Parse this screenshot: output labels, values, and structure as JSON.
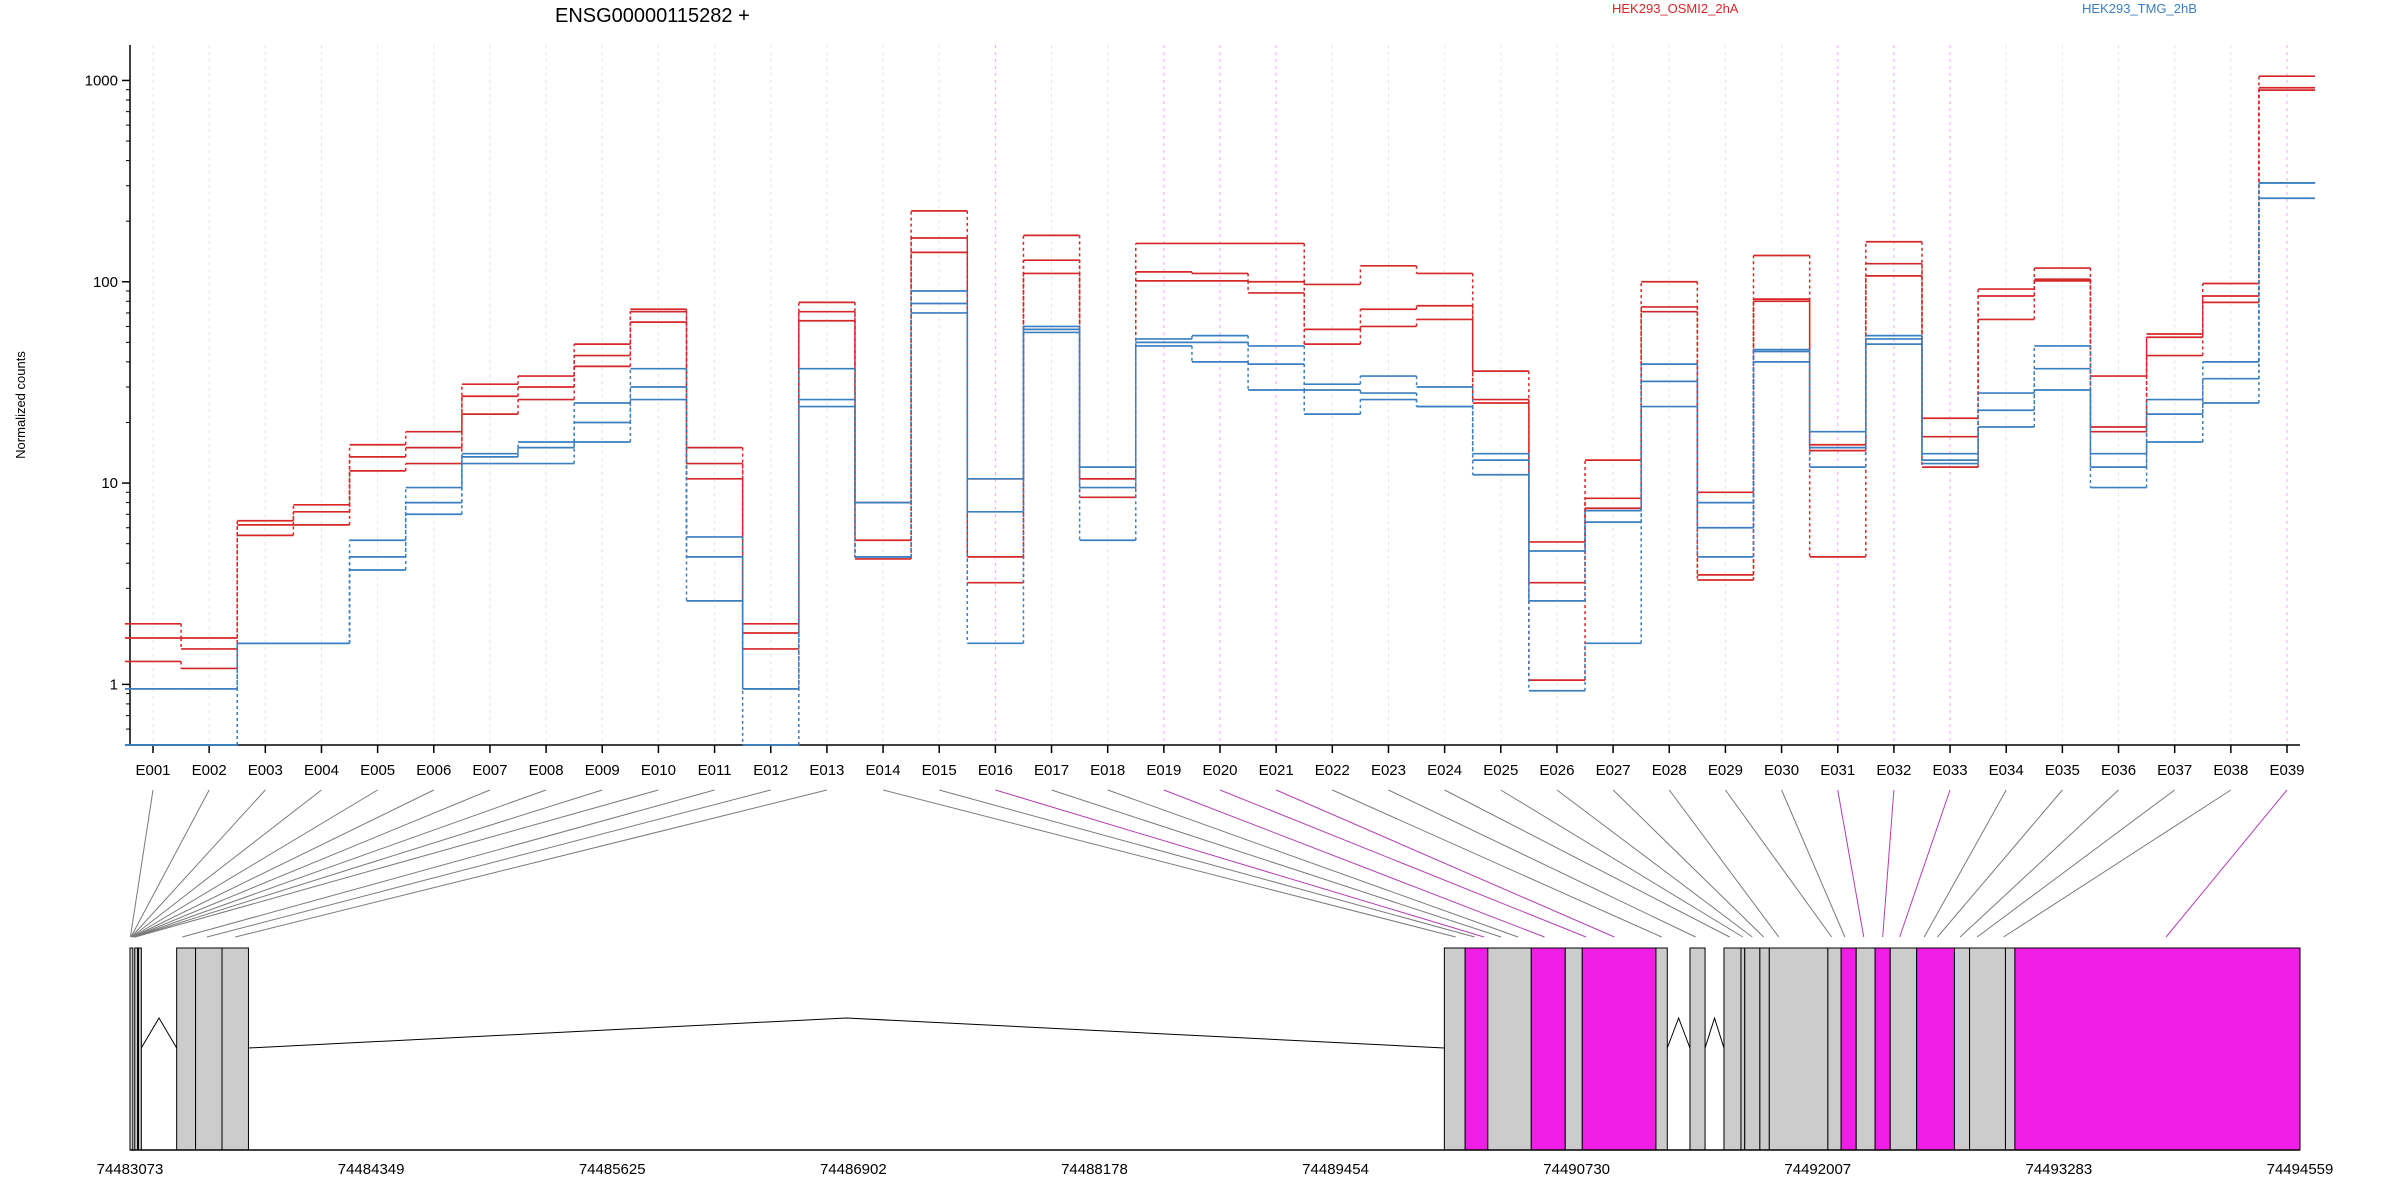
{
  "chart_data": {
    "type": "line",
    "title": "ENSG00000115282 +",
    "ylabel": "Normalized counts",
    "yscale": "log",
    "ylim": [
      0.5,
      1500
    ],
    "yticks": [
      "1",
      "10",
      "100",
      "1000"
    ],
    "legend": [
      {
        "name": "HEK293_OSMI2_2hA",
        "color": "#d62728"
      },
      {
        "name": "HEK293_TMG_2hB",
        "color": "#3a7fc0"
      }
    ],
    "categories": [
      "E001",
      "E002",
      "E003",
      "E004",
      "E005",
      "E006",
      "E007",
      "E008",
      "E009",
      "E010",
      "E011",
      "E012",
      "E013",
      "E014",
      "E015",
      "E016",
      "E017",
      "E018",
      "E019",
      "E020",
      "E021",
      "E022",
      "E023",
      "E024",
      "E025",
      "E026",
      "E027",
      "E028",
      "E029",
      "E030",
      "E031",
      "E032",
      "E033",
      "E034",
      "E035",
      "E036",
      "E037",
      "E038",
      "E039"
    ],
    "highlighted_exons": [
      "E016",
      "E019",
      "E020",
      "E021",
      "E031",
      "E032",
      "E033",
      "E039"
    ],
    "series": [
      {
        "name": "HEK293_OSMI2_2hA",
        "group": 0,
        "values": [
          2.0,
          1.7,
          6.5,
          7.8,
          15.5,
          18,
          31,
          34,
          49,
          73,
          15,
          2.0,
          79,
          8,
          225,
          10.5,
          170,
          10.5,
          155,
          155,
          155,
          97,
          120,
          110,
          36,
          5.1,
          13,
          100,
          9,
          135,
          15.5,
          158,
          21,
          92,
          117,
          34,
          55,
          98,
          1050
        ]
      },
      {
        "name": "HEK293_OSMI2_2hA",
        "group": 0,
        "values": [
          1.7,
          1.5,
          6.2,
          7.2,
          13.5,
          15,
          27,
          30,
          43,
          71,
          12.5,
          1.8,
          71,
          5.2,
          165,
          4.3,
          128,
          10.5,
          112,
          110,
          100,
          58,
          73,
          76,
          26,
          3.2,
          8.4,
          75,
          3.5,
          82,
          14.5,
          123,
          17,
          85,
          103,
          19,
          53,
          85,
          920
        ]
      },
      {
        "name": "HEK293_OSMI2_2hA",
        "group": 0,
        "values": [
          1.3,
          1.2,
          5.5,
          6.2,
          11.5,
          12.5,
          22,
          26,
          38,
          63,
          10.5,
          1.5,
          64,
          4.2,
          140,
          3.2,
          110,
          8.5,
          101,
          101,
          88,
          49,
          60,
          65,
          25,
          1.05,
          7.5,
          71,
          3.3,
          80,
          4.3,
          107,
          12,
          65,
          101,
          18,
          43,
          79,
          895
        ]
      },
      {
        "name": "HEK293_TMG_2hB",
        "group": 1,
        "values": [
          0.95,
          0.95,
          1.6,
          1.6,
          5.2,
          9.5,
          14,
          16,
          25,
          37,
          5.4,
          0.95,
          37,
          8,
          90,
          10.5,
          60,
          12,
          52,
          54,
          48,
          31,
          34,
          30,
          14,
          4.6,
          7.3,
          39,
          8,
          46,
          18,
          54,
          14,
          28,
          48,
          14,
          26,
          40,
          310
        ]
      },
      {
        "name": "HEK293_TMG_2hB",
        "group": 1,
        "values": [
          0.5,
          0.5,
          1.6,
          1.6,
          4.3,
          8,
          13.5,
          15,
          20,
          30,
          4.3,
          0.95,
          26,
          4.3,
          78,
          7.2,
          58,
          9.5,
          50,
          50,
          39,
          29,
          28,
          24,
          13,
          2.6,
          6.4,
          32,
          6,
          45,
          15,
          52,
          13,
          23,
          37,
          12,
          22,
          33,
          310
        ]
      },
      {
        "name": "HEK293_TMG_2hB",
        "group": 1,
        "values": [
          0.5,
          0.5,
          1.6,
          1.6,
          3.7,
          7,
          12.5,
          12.5,
          16,
          26,
          2.6,
          0.5,
          24,
          4.3,
          70,
          1.6,
          56,
          5.2,
          48,
          40,
          29,
          22,
          26,
          24,
          11,
          0.93,
          1.6,
          24,
          4.3,
          40,
          12,
          49,
          12.5,
          19,
          29,
          9.5,
          16,
          25,
          260
        ]
      }
    ],
    "genomic_axis": {
      "ticks": [
        "74483073",
        "74484349",
        "74485625",
        "74486902",
        "74488178",
        "74489454",
        "74490730",
        "74492007",
        "74493283",
        "74494559"
      ],
      "start": 74483073,
      "end": 74494559
    },
    "exon_blocks": [
      {
        "start": 74483073,
        "end": 74483088,
        "highlight": false
      },
      {
        "start": 74483098,
        "end": 74483113,
        "highlight": false
      },
      {
        "start": 74483118,
        "end": 74483133,
        "highlight": false
      },
      {
        "start": 74483320,
        "end": 74483420,
        "highlight": false
      },
      {
        "start": 74483420,
        "end": 74483560,
        "highlight": false
      },
      {
        "start": 74483560,
        "end": 74483700,
        "highlight": false
      },
      {
        "start": 74490030,
        "end": 74490140,
        "highlight": false
      },
      {
        "start": 74490140,
        "end": 74490260,
        "highlight": true
      },
      {
        "start": 74490260,
        "end": 74490490,
        "highlight": false
      },
      {
        "start": 74490490,
        "end": 74490670,
        "highlight": true
      },
      {
        "start": 74490670,
        "end": 74490760,
        "highlight": false
      },
      {
        "start": 74490760,
        "end": 74491150,
        "highlight": true
      },
      {
        "start": 74491150,
        "end": 74491210,
        "highlight": false
      },
      {
        "start": 74491330,
        "end": 74491410,
        "highlight": false
      },
      {
        "start": 74491510,
        "end": 74491600,
        "highlight": false
      },
      {
        "start": 74491600,
        "end": 74491620,
        "highlight": false
      },
      {
        "start": 74491620,
        "end": 74491700,
        "highlight": false
      },
      {
        "start": 74491700,
        "end": 74491750,
        "highlight": false
      },
      {
        "start": 74491750,
        "end": 74492060,
        "highlight": false
      },
      {
        "start": 74492060,
        "end": 74492130,
        "highlight": false
      },
      {
        "start": 74492130,
        "end": 74492210,
        "highlight": true
      },
      {
        "start": 74492210,
        "end": 74492310,
        "highlight": false
      },
      {
        "start": 74492310,
        "end": 74492390,
        "highlight": true
      },
      {
        "start": 74492390,
        "end": 74492530,
        "highlight": false
      },
      {
        "start": 74492530,
        "end": 74492730,
        "highlight": true
      },
      {
        "start": 74492730,
        "end": 74492810,
        "highlight": false
      },
      {
        "start": 74492810,
        "end": 74493000,
        "highlight": false
      },
      {
        "start": 74493000,
        "end": 74493050,
        "highlight": false
      },
      {
        "start": 74493050,
        "end": 74494559,
        "highlight": true
      }
    ],
    "exon_links": [
      {
        "exon": "E001",
        "pos": 74483075
      },
      {
        "exon": "E002",
        "pos": 74483078
      },
      {
        "exon": "E003",
        "pos": 74483080
      },
      {
        "exon": "E004",
        "pos": 74483082
      },
      {
        "exon": "E005",
        "pos": 74483085
      },
      {
        "exon": "E006",
        "pos": 74483088
      },
      {
        "exon": "E007",
        "pos": 74483090
      },
      {
        "exon": "E008",
        "pos": 74483093
      },
      {
        "exon": "E009",
        "pos": 74483096
      },
      {
        "exon": "E010",
        "pos": 74483100
      },
      {
        "exon": "E011",
        "pos": 74483350
      },
      {
        "exon": "E012",
        "pos": 74483480
      },
      {
        "exon": "E013",
        "pos": 74483630
      },
      {
        "exon": "E014",
        "pos": 74490090
      },
      {
        "exon": "E015",
        "pos": 74490190
      },
      {
        "exon": "E016",
        "pos": 74490240
      },
      {
        "exon": "E017",
        "pos": 74490330
      },
      {
        "exon": "E018",
        "pos": 74490420
      },
      {
        "exon": "E019",
        "pos": 74490560
      },
      {
        "exon": "E020",
        "pos": 74490780
      },
      {
        "exon": "E021",
        "pos": 74490930
      },
      {
        "exon": "E022",
        "pos": 74491180
      },
      {
        "exon": "E023",
        "pos": 74491360
      },
      {
        "exon": "E024",
        "pos": 74491540
      },
      {
        "exon": "E025",
        "pos": 74491610
      },
      {
        "exon": "E026",
        "pos": 74491660
      },
      {
        "exon": "E027",
        "pos": 74491720
      },
      {
        "exon": "E028",
        "pos": 74491800
      },
      {
        "exon": "E029",
        "pos": 74492080
      },
      {
        "exon": "E030",
        "pos": 74492150
      },
      {
        "exon": "E031",
        "pos": 74492250
      },
      {
        "exon": "E032",
        "pos": 74492350
      },
      {
        "exon": "E033",
        "pos": 74492440
      },
      {
        "exon": "E034",
        "pos": 74492570
      },
      {
        "exon": "E035",
        "pos": 74492640
      },
      {
        "exon": "E036",
        "pos": 74492760
      },
      {
        "exon": "E037",
        "pos": 74492850
      },
      {
        "exon": "E038",
        "pos": 74492990
      },
      {
        "exon": "E039",
        "pos": 74493850
      }
    ]
  }
}
